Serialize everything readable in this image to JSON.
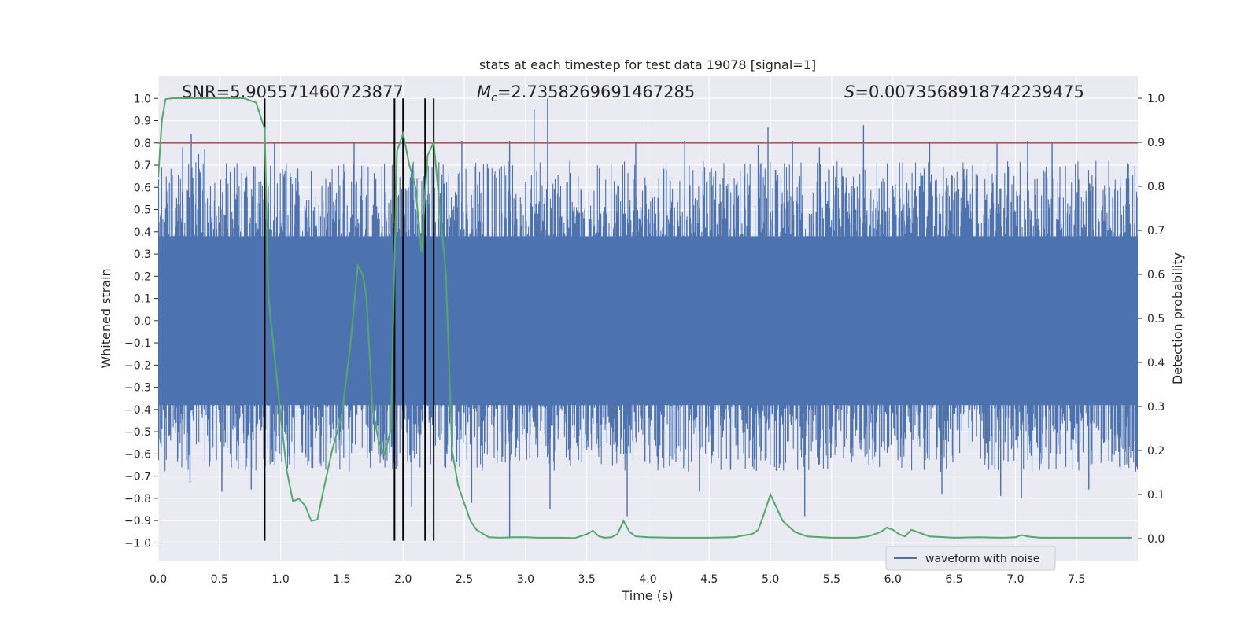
{
  "chart_data": {
    "type": "line",
    "title": "stats at each timestep for test data 19078 [signal=1]",
    "xlabel": "Time (s)",
    "ylabel": "Whitened strain",
    "y2label": "Detection probability",
    "xlim": [
      0.0,
      8.0
    ],
    "ylim": [
      -1.08,
      1.1
    ],
    "y2lim": [
      -0.05,
      1.05
    ],
    "x_ticks": [
      0.0,
      0.5,
      1.0,
      1.5,
      2.0,
      2.5,
      3.0,
      3.5,
      4.0,
      4.5,
      5.0,
      5.5,
      6.0,
      6.5,
      7.0,
      7.5
    ],
    "x_tick_labels": [
      "0.0",
      "0.5",
      "1.0",
      "1.5",
      "2.0",
      "2.5",
      "3.0",
      "3.5",
      "4.0",
      "4.5",
      "5.0",
      "5.5",
      "6.0",
      "6.5",
      "7.0",
      "7.5"
    ],
    "y_ticks": [
      1.0,
      0.9,
      0.8,
      0.7,
      0.6,
      0.5,
      0.4,
      0.3,
      0.2,
      0.1,
      0.0,
      -0.1,
      -0.2,
      -0.3,
      -0.4,
      -0.5,
      -0.6,
      -0.7,
      -0.8,
      -0.9,
      -1.0
    ],
    "y_tick_labels": [
      "1.0",
      "0.9",
      "0.8",
      "0.7",
      "0.6",
      "0.5",
      "0.4",
      "0.3",
      "0.2",
      "0.1",
      "0.0",
      "−0.1",
      "−0.2",
      "−0.3",
      "−0.4",
      "−0.5",
      "−0.6",
      "−0.7",
      "−0.8",
      "−0.9",
      "−1.0"
    ],
    "y2_ticks": [
      1.0,
      0.9,
      0.8,
      0.7,
      0.6,
      0.5,
      0.4,
      0.3,
      0.2,
      0.1,
      0.0
    ],
    "y2_tick_labels": [
      "1.0",
      "0.9",
      "0.8",
      "0.7",
      "0.6",
      "0.5",
      "0.4",
      "0.3",
      "0.2",
      "0.1",
      "0.0"
    ],
    "stats": {
      "snr": "SNR=5.905571460723877",
      "mc_symbol": "M",
      "mc_sub": "c",
      "mc_value": "=2.7358269691467285",
      "s_symbol": "S",
      "s_value": "=0.0073568918742239475"
    },
    "threshold": {
      "y": 0.8,
      "color": "#c44e52"
    },
    "vertical_lines": {
      "x": [
        0.87,
        1.93,
        2.0,
        2.18,
        2.25
      ],
      "y_range": [
        -0.99,
        1.0
      ],
      "color": "#000000"
    },
    "waveform": {
      "name": "waveform with noise",
      "color": "#4c72b0",
      "dense_band": 0.38,
      "peak_spikes": [
        [
          0.27,
          0.84
        ],
        [
          0.2,
          0.78
        ],
        [
          0.33,
          0.75
        ],
        [
          0.38,
          0.77
        ],
        [
          0.95,
          0.8
        ],
        [
          1.6,
          0.8
        ],
        [
          2.0,
          0.78
        ],
        [
          2.48,
          0.81
        ],
        [
          2.87,
          0.81
        ],
        [
          3.07,
          0.95
        ],
        [
          3.18,
          1.0
        ],
        [
          3.9,
          0.8
        ],
        [
          4.3,
          0.81
        ],
        [
          4.9,
          0.79
        ],
        [
          4.98,
          0.87
        ],
        [
          5.18,
          0.81
        ],
        [
          5.4,
          0.78
        ],
        [
          5.76,
          0.88
        ],
        [
          6.3,
          0.8
        ],
        [
          6.85,
          0.8
        ],
        [
          7.1,
          0.81
        ],
        [
          7.3,
          0.8
        ]
      ],
      "trough_spikes": [
        [
          0.26,
          -0.73
        ],
        [
          0.52,
          -0.77
        ],
        [
          0.76,
          -0.76
        ],
        [
          2.07,
          -0.84
        ],
        [
          2.87,
          -0.98
        ],
        [
          2.56,
          -0.82
        ],
        [
          3.2,
          -0.85
        ],
        [
          3.83,
          -0.88
        ],
        [
          4.42,
          -0.77
        ],
        [
          5.28,
          -0.88
        ],
        [
          6.4,
          -0.78
        ],
        [
          6.88,
          -0.79
        ],
        [
          7.05,
          -0.8
        ],
        [
          7.6,
          -0.76
        ]
      ]
    },
    "probability": {
      "color": "#55a868",
      "x": [
        0.0,
        0.03,
        0.06,
        0.12,
        0.2,
        0.3,
        0.4,
        0.5,
        0.6,
        0.7,
        0.8,
        0.87,
        0.9,
        1.0,
        1.05,
        1.1,
        1.15,
        1.2,
        1.25,
        1.3,
        1.35,
        1.42,
        1.5,
        1.57,
        1.63,
        1.67,
        1.7,
        1.75,
        1.8,
        1.85,
        1.9,
        1.95,
        2.0,
        2.05,
        2.1,
        2.15,
        2.2,
        2.25,
        2.3,
        2.35,
        2.4,
        2.45,
        2.5,
        2.55,
        2.6,
        2.7,
        2.8,
        2.9,
        3.0,
        3.1,
        3.2,
        3.3,
        3.4,
        3.5,
        3.55,
        3.6,
        3.65,
        3.7,
        3.75,
        3.8,
        3.85,
        3.9,
        4.0,
        4.2,
        4.5,
        4.7,
        4.8,
        4.85,
        4.9,
        4.94,
        5.0,
        5.05,
        5.1,
        5.2,
        5.3,
        5.5,
        5.7,
        5.8,
        5.9,
        5.95,
        6.0,
        6.05,
        6.1,
        6.15,
        6.2,
        6.3,
        6.5,
        6.7,
        6.9,
        7.0,
        7.05,
        7.1,
        7.2,
        7.4,
        7.6,
        7.8,
        7.95
      ],
      "y": [
        0.82,
        0.95,
        0.998,
        1.0,
        1.0,
        1.0,
        1.0,
        1.0,
        1.0,
        1.0,
        0.99,
        0.93,
        0.55,
        0.28,
        0.155,
        0.085,
        0.09,
        0.075,
        0.04,
        0.043,
        0.11,
        0.2,
        0.28,
        0.44,
        0.62,
        0.6,
        0.55,
        0.3,
        0.22,
        0.19,
        0.25,
        0.88,
        0.92,
        0.85,
        0.8,
        0.65,
        0.87,
        0.9,
        0.75,
        0.6,
        0.2,
        0.12,
        0.08,
        0.04,
        0.02,
        0.003,
        0.002,
        0.003,
        0.003,
        0.002,
        0.002,
        0.002,
        0.001,
        0.01,
        0.018,
        0.005,
        0.002,
        0.003,
        0.01,
        0.04,
        0.015,
        0.005,
        0.003,
        0.002,
        0.002,
        0.003,
        0.008,
        0.01,
        0.02,
        0.05,
        0.1,
        0.07,
        0.04,
        0.015,
        0.005,
        0.002,
        0.002,
        0.005,
        0.015,
        0.025,
        0.02,
        0.01,
        0.005,
        0.02,
        0.015,
        0.005,
        0.002,
        0.003,
        0.002,
        0.003,
        0.008,
        0.005,
        0.002,
        0.002,
        0.002,
        0.002,
        0.002
      ]
    },
    "legend": {
      "position": "lower-center-right",
      "entries": [
        "waveform with noise"
      ]
    },
    "grid": true
  }
}
